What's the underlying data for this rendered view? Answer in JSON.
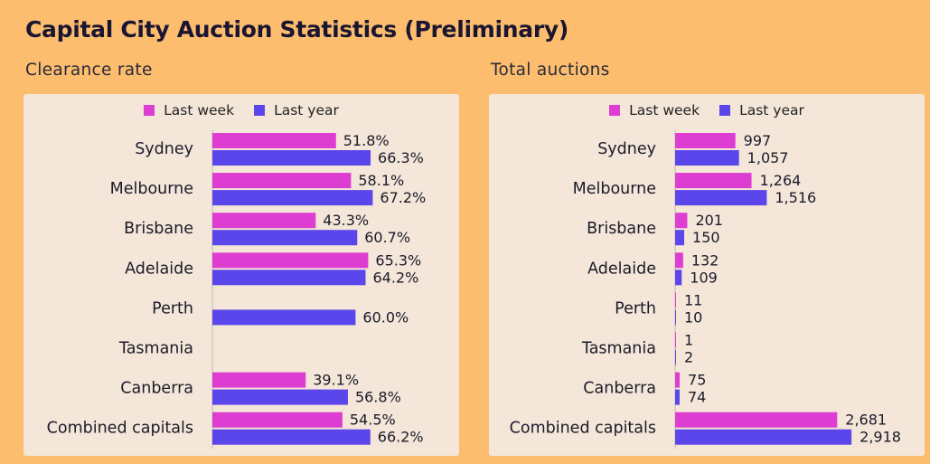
{
  "title": "Capital City Auction Statistics (Preliminary)",
  "colors": {
    "background": "#FCBD6E",
    "panel": "#F4E6D8",
    "last_week": "#DD3DD1",
    "last_year": "#5B46EB",
    "axis": "#c9b9aa"
  },
  "legend": {
    "last_week": "Last week",
    "last_year": "Last year"
  },
  "chart_data": [
    {
      "type": "bar",
      "orientation": "horizontal",
      "title": "Clearance rate",
      "categories": [
        "Sydney",
        "Melbourne",
        "Brisbane",
        "Adelaide",
        "Perth",
        "Tasmania",
        "Canberra",
        "Combined capitals"
      ],
      "series": [
        {
          "name": "Last week",
          "values": [
            51.8,
            58.1,
            43.3,
            65.3,
            null,
            null,
            39.1,
            54.5
          ],
          "labels": [
            "51.8%",
            "58.1%",
            "43.3%",
            "65.3%",
            "",
            "",
            "39.1%",
            "54.5%"
          ]
        },
        {
          "name": "Last year",
          "values": [
            66.3,
            67.2,
            60.7,
            64.2,
            60.0,
            null,
            56.8,
            66.2
          ],
          "labels": [
            "66.3%",
            "67.2%",
            "60.7%",
            "64.2%",
            "60.0%",
            "",
            "56.8%",
            "66.2%"
          ]
        }
      ],
      "xlim": [
        0,
        100
      ],
      "grid": false,
      "legend_position": "top-center"
    },
    {
      "type": "bar",
      "orientation": "horizontal",
      "title": "Total auctions",
      "categories": [
        "Sydney",
        "Melbourne",
        "Brisbane",
        "Adelaide",
        "Perth",
        "Tasmania",
        "Canberra",
        "Combined capitals"
      ],
      "series": [
        {
          "name": "Last week",
          "values": [
            997,
            1264,
            201,
            132,
            11,
            1,
            75,
            2681
          ],
          "labels": [
            "997",
            "1,264",
            "201",
            "132",
            "11",
            "1",
            "75",
            "2,681"
          ]
        },
        {
          "name": "Last year",
          "values": [
            1057,
            1516,
            150,
            109,
            10,
            2,
            74,
            2918
          ],
          "labels": [
            "1,057",
            "1,516",
            "150",
            "109",
            "10",
            "2",
            "74",
            "2,918"
          ]
        }
      ],
      "xlim": [
        0,
        3200
      ],
      "grid": false,
      "legend_position": "top-center"
    }
  ]
}
